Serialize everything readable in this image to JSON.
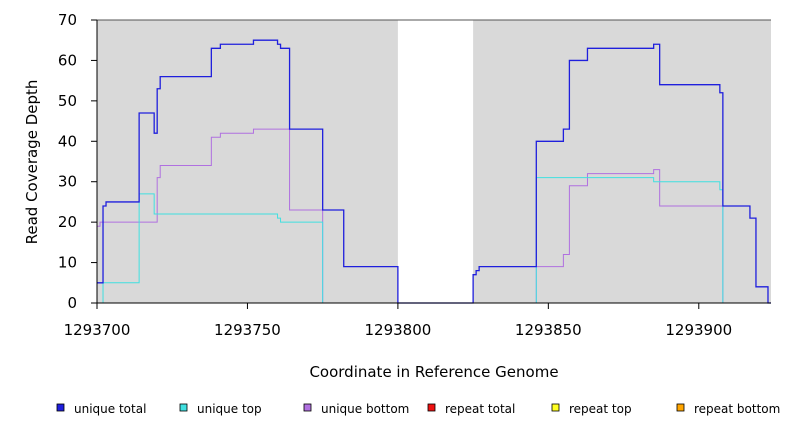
{
  "chart_data": {
    "type": "line",
    "xlabel": "Coordinate in Reference Genome",
    "ylabel": "Read Coverage Depth",
    "xlim": [
      1293700,
      1293924
    ],
    "ylim": [
      0,
      70
    ],
    "x_ticks": [
      1293700,
      1293750,
      1293800,
      1293850,
      1293900
    ],
    "y_ticks": [
      0,
      10,
      20,
      30,
      40,
      50,
      60,
      70
    ],
    "grid": false,
    "background_regions": [
      {
        "x0": 1293700,
        "x1": 1293800,
        "color": "#d9d9d9"
      },
      {
        "x0": 1293825,
        "x1": 1293924,
        "color": "#d9d9d9"
      }
    ],
    "legend_position": "bottom",
    "series": [
      {
        "name": "unique total",
        "color": "#1f1fdd",
        "points": [
          [
            1293700,
            5
          ],
          [
            1293702,
            5
          ],
          [
            1293702,
            24
          ],
          [
            1293703,
            24
          ],
          [
            1293703,
            25
          ],
          [
            1293714,
            25
          ],
          [
            1293714,
            47
          ],
          [
            1293719,
            47
          ],
          [
            1293719,
            42
          ],
          [
            1293720,
            42
          ],
          [
            1293720,
            53
          ],
          [
            1293721,
            53
          ],
          [
            1293721,
            56
          ],
          [
            1293738,
            56
          ],
          [
            1293738,
            63
          ],
          [
            1293741,
            63
          ],
          [
            1293741,
            64
          ],
          [
            1293752,
            64
          ],
          [
            1293752,
            65
          ],
          [
            1293760,
            65
          ],
          [
            1293760,
            64
          ],
          [
            1293761,
            64
          ],
          [
            1293761,
            63
          ],
          [
            1293764,
            63
          ],
          [
            1293764,
            43
          ],
          [
            1293775,
            43
          ],
          [
            1293775,
            23
          ],
          [
            1293782,
            23
          ],
          [
            1293782,
            9
          ],
          [
            1293800,
            9
          ],
          [
            1293800,
            0
          ],
          [
            1293825,
            0
          ],
          [
            1293825,
            7
          ],
          [
            1293826,
            7
          ],
          [
            1293826,
            8
          ],
          [
            1293827,
            8
          ],
          [
            1293827,
            9
          ],
          [
            1293846,
            9
          ],
          [
            1293846,
            40
          ],
          [
            1293855,
            40
          ],
          [
            1293855,
            43
          ],
          [
            1293857,
            43
          ],
          [
            1293857,
            60
          ],
          [
            1293863,
            60
          ],
          [
            1293863,
            63
          ],
          [
            1293885,
            63
          ],
          [
            1293885,
            64
          ],
          [
            1293887,
            64
          ],
          [
            1293887,
            54
          ],
          [
            1293907,
            54
          ],
          [
            1293907,
            52
          ],
          [
            1293908,
            52
          ],
          [
            1293908,
            24
          ],
          [
            1293917,
            24
          ],
          [
            1293917,
            21
          ],
          [
            1293919,
            21
          ],
          [
            1293919,
            4
          ],
          [
            1293923,
            4
          ],
          [
            1293923,
            0
          ],
          [
            1293924,
            0
          ]
        ]
      },
      {
        "name": "unique top",
        "color": "#40e0e0",
        "points": [
          [
            1293700,
            0
          ],
          [
            1293702,
            0
          ],
          [
            1293702,
            5
          ],
          [
            1293714,
            5
          ],
          [
            1293714,
            27
          ],
          [
            1293719,
            27
          ],
          [
            1293719,
            22
          ],
          [
            1293760,
            22
          ],
          [
            1293760,
            21
          ],
          [
            1293761,
            21
          ],
          [
            1293761,
            20
          ],
          [
            1293775,
            20
          ],
          [
            1293775,
            0
          ],
          [
            1293846,
            0
          ],
          [
            1293846,
            31
          ],
          [
            1293885,
            31
          ],
          [
            1293885,
            30
          ],
          [
            1293907,
            30
          ],
          [
            1293907,
            28
          ],
          [
            1293908,
            28
          ],
          [
            1293908,
            0
          ],
          [
            1293924,
            0
          ]
        ]
      },
      {
        "name": "unique bottom",
        "color": "#b070e0",
        "points": [
          [
            1293700,
            19
          ],
          [
            1293701,
            19
          ],
          [
            1293701,
            20
          ],
          [
            1293720,
            20
          ],
          [
            1293720,
            31
          ],
          [
            1293721,
            31
          ],
          [
            1293721,
            34
          ],
          [
            1293738,
            34
          ],
          [
            1293738,
            41
          ],
          [
            1293741,
            41
          ],
          [
            1293741,
            42
          ],
          [
            1293752,
            42
          ],
          [
            1293752,
            43
          ],
          [
            1293764,
            43
          ],
          [
            1293764,
            23
          ],
          [
            1293775,
            23
          ],
          [
            1293775,
            0
          ],
          [
            1293846,
            0
          ],
          [
            1293846,
            9
          ],
          [
            1293855,
            9
          ],
          [
            1293855,
            12
          ],
          [
            1293857,
            12
          ],
          [
            1293857,
            29
          ],
          [
            1293863,
            29
          ],
          [
            1293863,
            32
          ],
          [
            1293885,
            32
          ],
          [
            1293885,
            33
          ],
          [
            1293887,
            33
          ],
          [
            1293887,
            24
          ],
          [
            1293908,
            24
          ],
          [
            1293908,
            0
          ],
          [
            1293924,
            0
          ]
        ]
      },
      {
        "name": "repeat total",
        "color": "#ee1111",
        "points": [
          [
            1293700,
            0
          ],
          [
            1293924,
            0
          ]
        ]
      },
      {
        "name": "repeat top",
        "color": "#ffff22",
        "points": [
          [
            1293700,
            0
          ],
          [
            1293924,
            0
          ]
        ]
      },
      {
        "name": "repeat bottom",
        "color": "#ffa500",
        "points": [
          [
            1293700,
            0
          ],
          [
            1293924,
            0
          ]
        ]
      }
    ]
  }
}
